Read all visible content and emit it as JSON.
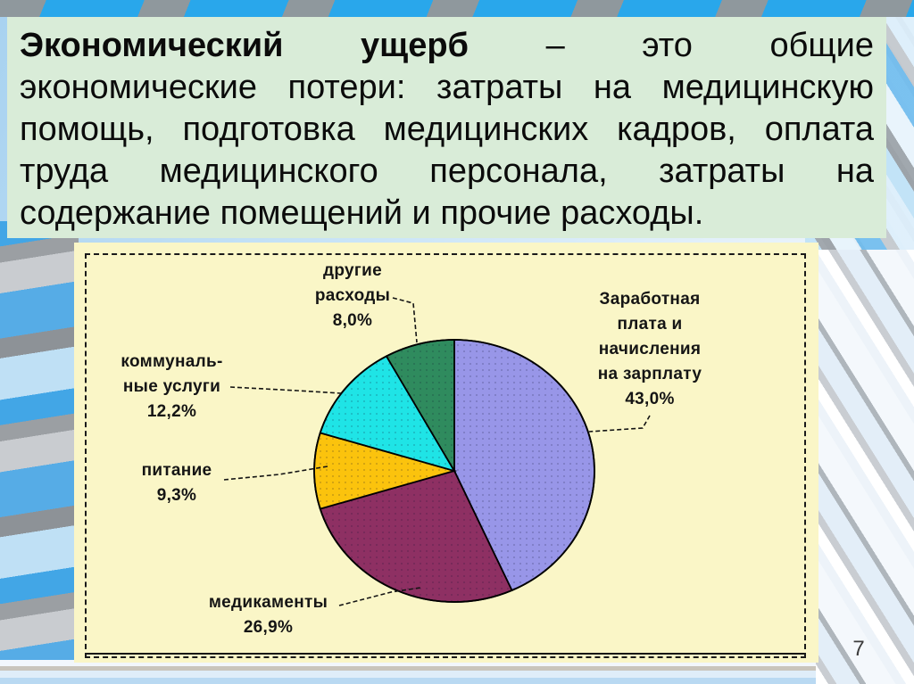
{
  "slide": {
    "page_number": "7",
    "accent_colors": {
      "top_band_blue": "#29a7eb",
      "stripe_gray": "#8f989d",
      "definition_bg": "#d9ecd8",
      "chart_bg": "#faf6c7"
    }
  },
  "definition_box": {
    "full_text": "Экономический ущерб – это общие экономические потери: затраты на медицинскую помощь, подготовка медицинских кадров, оплата труда медицинского персонала, затраты на содержание помещений и прочие расходы.",
    "lines": [
      {
        "bold": "Экономический ущерб",
        "text": " – это общие"
      },
      {
        "text": "экономические потери: затраты на медицинскую"
      },
      {
        "text": "помощь, подготовка медицинских кадров, оплата"
      },
      {
        "text": "труда медицинского персонала, затраты на"
      },
      {
        "text": "содержание помещений и прочие расходы."
      }
    ]
  },
  "chart_data": {
    "type": "pie",
    "title": "",
    "unit": "%",
    "direction": "clockwise",
    "start_angle_deg": 0,
    "background": "#faf6c7",
    "slices": [
      {
        "name": "salary",
        "label": "Заработная плата и начисления на зарплату",
        "value": 43.0,
        "display": "43,0%",
        "color": "#9896e8",
        "label_lines": [
          "Заработная",
          "плата и",
          "начисления",
          "на зарплату",
          "43,0%"
        ]
      },
      {
        "name": "medicines",
        "label": "медикаменты",
        "value": 26.9,
        "display": "26,9%",
        "color": "#8e3063",
        "label_lines": [
          "медикаменты",
          "26,9%"
        ]
      },
      {
        "name": "food",
        "label": "питание",
        "value": 9.3,
        "display": "9,3%",
        "color": "#fbc30d",
        "label_lines": [
          "питание",
          "9,3%"
        ]
      },
      {
        "name": "utilities",
        "label": "коммунальные услуги",
        "value": 12.2,
        "display": "12,2%",
        "color": "#1fe4e6",
        "label_lines": [
          "коммуналь-",
          "ные услуги",
          "12,2%"
        ]
      },
      {
        "name": "other",
        "label": "другие расходы",
        "value": 8.0,
        "display": "8,0%",
        "color": "#2f8b5e",
        "label_lines": [
          "другие",
          "расходы",
          "8,0%"
        ]
      }
    ]
  }
}
